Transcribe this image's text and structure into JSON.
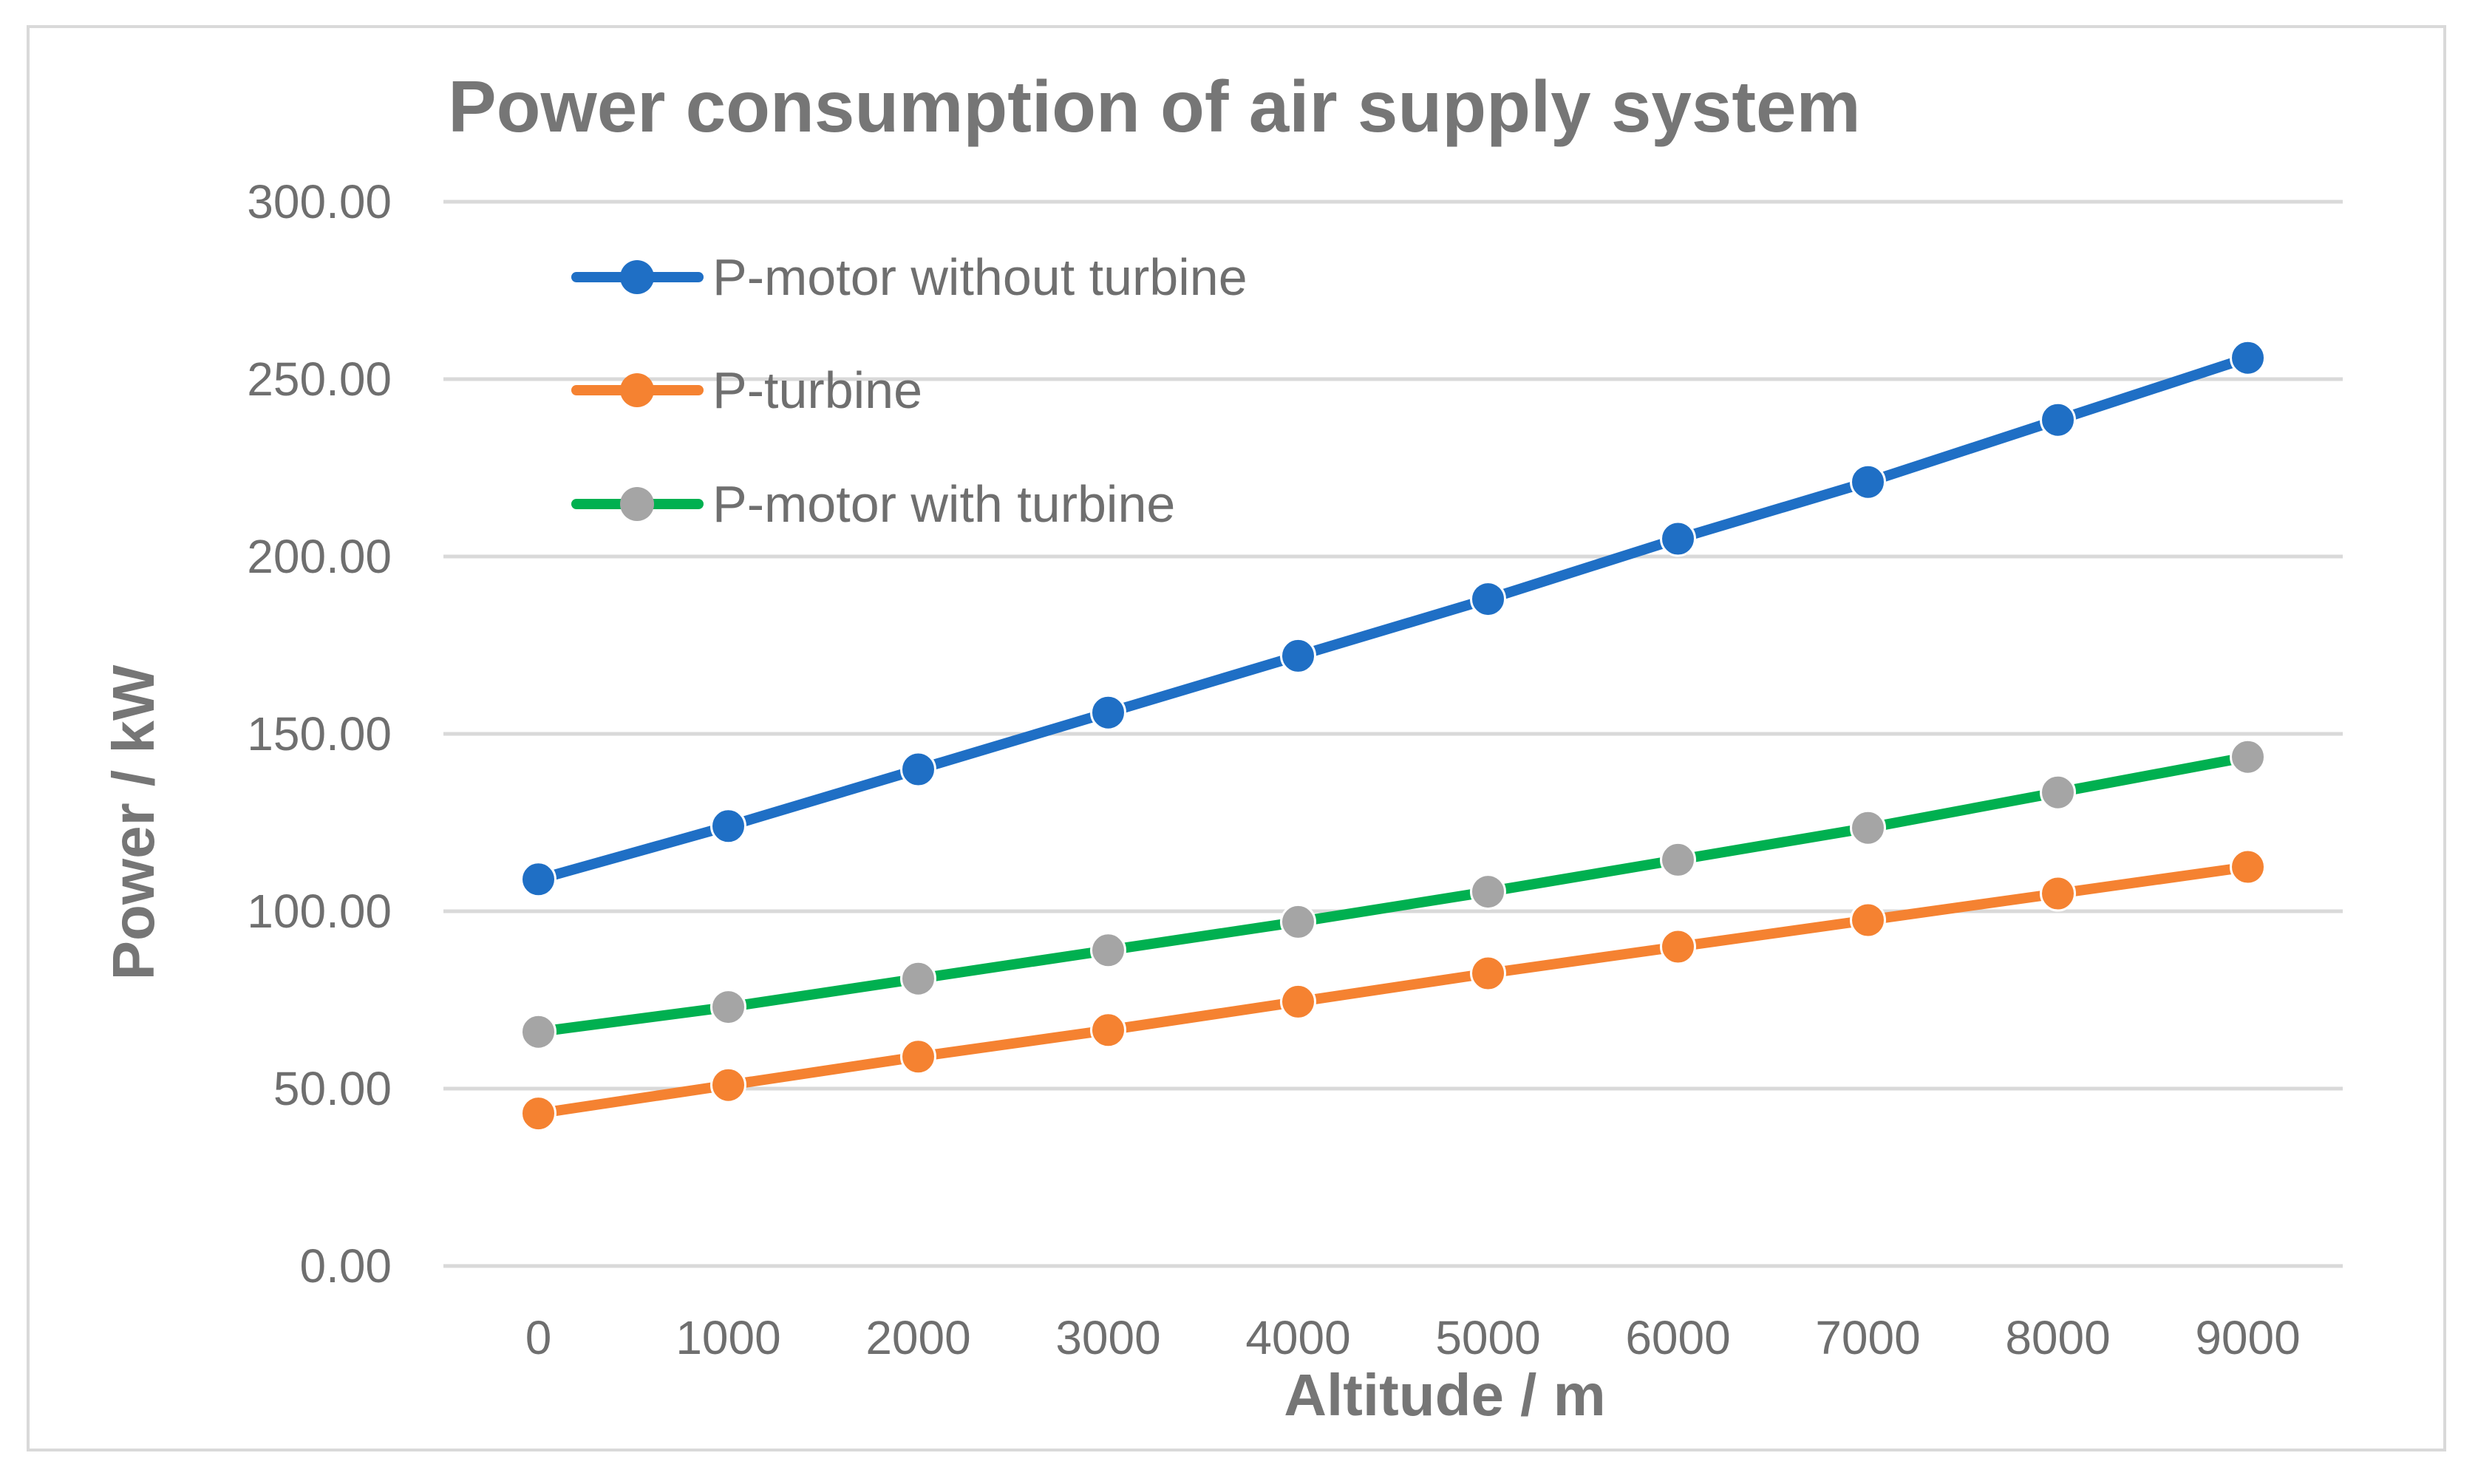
{
  "chart_data": {
    "type": "line",
    "title": "Power consumption of air supply system",
    "xlabel": "Altitude / m",
    "ylabel": "Power / kW",
    "categories": [
      "0",
      "1000",
      "2000",
      "3000",
      "4000",
      "5000",
      "6000",
      "7000",
      "8000",
      "9000"
    ],
    "ylim": [
      0,
      300
    ],
    "yticks": [
      "0.00",
      "50.00",
      "100.00",
      "150.00",
      "200.00",
      "250.00",
      "300.00"
    ],
    "grid": true,
    "legend_position": "top-left",
    "series": [
      {
        "name": "P-motor without turbine",
        "line_color": "#1f6fc5",
        "marker_color": "#1f6fc5",
        "values": [
          109,
          124,
          140,
          156,
          172,
          188,
          205,
          221,
          238.5,
          256
        ]
      },
      {
        "name": "P-turbine",
        "line_color": "#f58231",
        "marker_color": "#f58231",
        "values": [
          43,
          51,
          59,
          66.5,
          74.5,
          82.5,
          90,
          97.5,
          105,
          112.5
        ]
      },
      {
        "name": "P-motor with turbine",
        "line_color": "#00b050",
        "marker_color": "#a5a5a5",
        "values": [
          66,
          73,
          81,
          89,
          97,
          105.5,
          114.5,
          123.5,
          133.5,
          143.5
        ]
      }
    ]
  }
}
